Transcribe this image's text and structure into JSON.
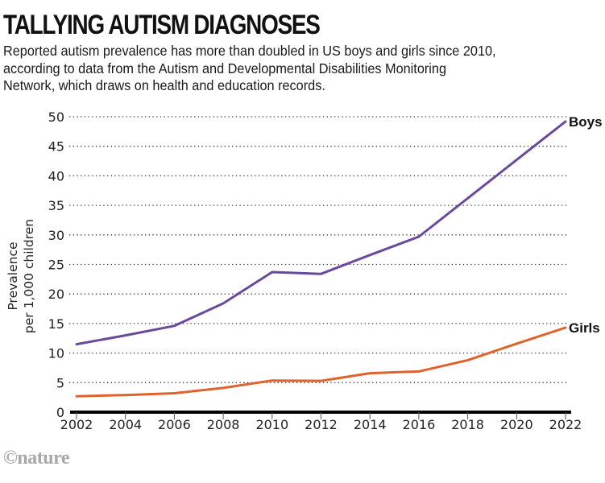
{
  "header": {
    "title": "TALLYING AUTISM DIAGNOSES",
    "subtitle_lines": [
      "Reported autism prevalence has more than doubled in US boys and girls since 2010,",
      "according to data from the Autism and Developmental Disabilities Monitoring",
      "Network, which draws on health and education records."
    ]
  },
  "footer": {
    "logo": "©nature"
  },
  "colors": {
    "boys": "#6a4b9b",
    "girls": "#e0622c",
    "axis": "#000000",
    "grid": "#333333"
  },
  "chart_data": {
    "type": "line",
    "title": "TALLYING AUTISM DIAGNOSES",
    "xlabel": "",
    "ylabel": [
      "Prevalence",
      "per 1,000 children"
    ],
    "x": [
      2002,
      2004,
      2006,
      2008,
      2010,
      2012,
      2014,
      2016,
      2018,
      2020,
      2022
    ],
    "xticks": [
      "2002",
      "2004",
      "2006",
      "2008",
      "2010",
      "2012",
      "2014",
      "2016",
      "2018",
      "2020",
      "2022"
    ],
    "yticks": [
      0,
      5,
      10,
      15,
      20,
      25,
      30,
      35,
      40,
      45,
      50
    ],
    "xlim": [
      2002,
      2022
    ],
    "ylim": [
      0,
      50
    ],
    "grid": "horizontal-dotted",
    "legend": "inline-right",
    "series": [
      {
        "name": "Boys",
        "color_key": "boys",
        "values": [
          11.5,
          13.0,
          14.6,
          18.4,
          23.7,
          23.4,
          26.6,
          29.7,
          36.2,
          42.7,
          49.2
        ]
      },
      {
        "name": "Girls",
        "color_key": "girls",
        "values": [
          2.7,
          2.9,
          3.2,
          4.1,
          5.35,
          5.3,
          6.6,
          6.9,
          8.8,
          11.6,
          14.3
        ]
      }
    ]
  }
}
